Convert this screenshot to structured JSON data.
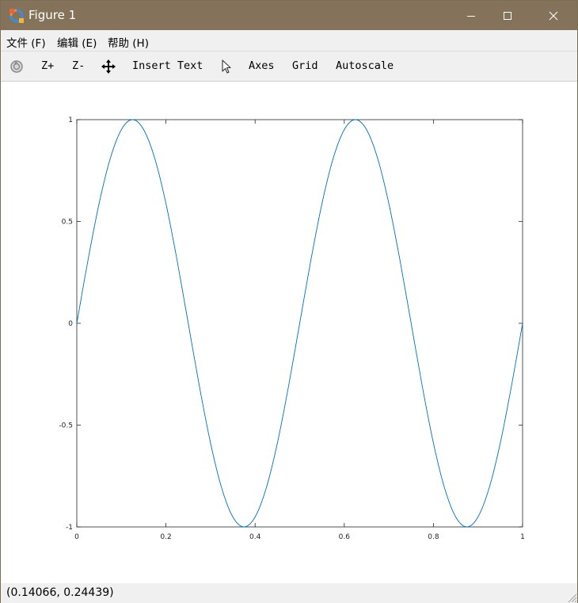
{
  "window": {
    "title": "Figure 1",
    "icons": {
      "app": "octave-figure-icon",
      "minimize": "minimize-icon",
      "maximize": "maximize-icon",
      "close": "close-icon"
    }
  },
  "menubar": {
    "items": [
      {
        "label": "文件 (F)",
        "mnemonic": "F"
      },
      {
        "label": "编辑 (E)",
        "mnemonic": "E"
      },
      {
        "label": "帮助 (H)",
        "mnemonic": "H"
      }
    ]
  },
  "toolbar": {
    "rotate_icon": "rotate-icon",
    "zoom_in": "Z+",
    "zoom_out": "Z-",
    "pan_icon": "pan-icon",
    "insert_text": "Insert Text",
    "select_icon": "pointer-icon",
    "axes": "Axes",
    "grid": "Grid",
    "autoscale": "Autoscale"
  },
  "statusbar": {
    "coordinates": "(0.14066, 0.24439)"
  },
  "colors": {
    "titlebar": "#84735a",
    "line": "#0072bd",
    "chrome": "#f0f0f0"
  },
  "chart_data": {
    "type": "line",
    "title": "",
    "xlabel": "",
    "ylabel": "",
    "xlim": [
      0,
      1
    ],
    "ylim": [
      -1,
      1
    ],
    "x_ticks": [
      0,
      0.2,
      0.4,
      0.6,
      0.8,
      1
    ],
    "y_ticks": [
      -1,
      -0.5,
      0,
      0.5,
      1
    ],
    "x_tick_labels": [
      "0",
      "0.2",
      "0.4",
      "0.6",
      "0.8",
      "1"
    ],
    "y_tick_labels": [
      "-1",
      "-0.5",
      "0",
      "0.5",
      "1"
    ],
    "grid": false,
    "box": true,
    "series": [
      {
        "color": "#0072bd",
        "x": [
          0,
          0.025,
          0.05,
          0.075,
          0.1,
          0.125,
          0.15,
          0.175,
          0.2,
          0.225,
          0.25,
          0.275,
          0.3,
          0.325,
          0.35,
          0.375,
          0.4,
          0.425,
          0.45,
          0.475,
          0.5,
          0.525,
          0.55,
          0.575,
          0.6,
          0.625,
          0.65,
          0.675,
          0.7,
          0.725,
          0.75,
          0.775,
          0.8,
          0.825,
          0.85,
          0.875,
          0.9,
          0.925,
          0.95,
          0.975,
          1
        ],
        "y": [
          0,
          0.309,
          0.588,
          0.809,
          0.951,
          1,
          0.951,
          0.809,
          0.588,
          0.309,
          0,
          -0.309,
          -0.588,
          -0.809,
          -0.951,
          -1,
          -0.951,
          -0.809,
          -0.588,
          -0.309,
          0,
          0.309,
          0.588,
          0.809,
          0.951,
          1,
          0.951,
          0.809,
          0.588,
          0.309,
          0,
          -0.309,
          -0.588,
          -0.809,
          -0.951,
          -1,
          -0.951,
          -0.809,
          -0.588,
          -0.309,
          0
        ]
      }
    ]
  }
}
